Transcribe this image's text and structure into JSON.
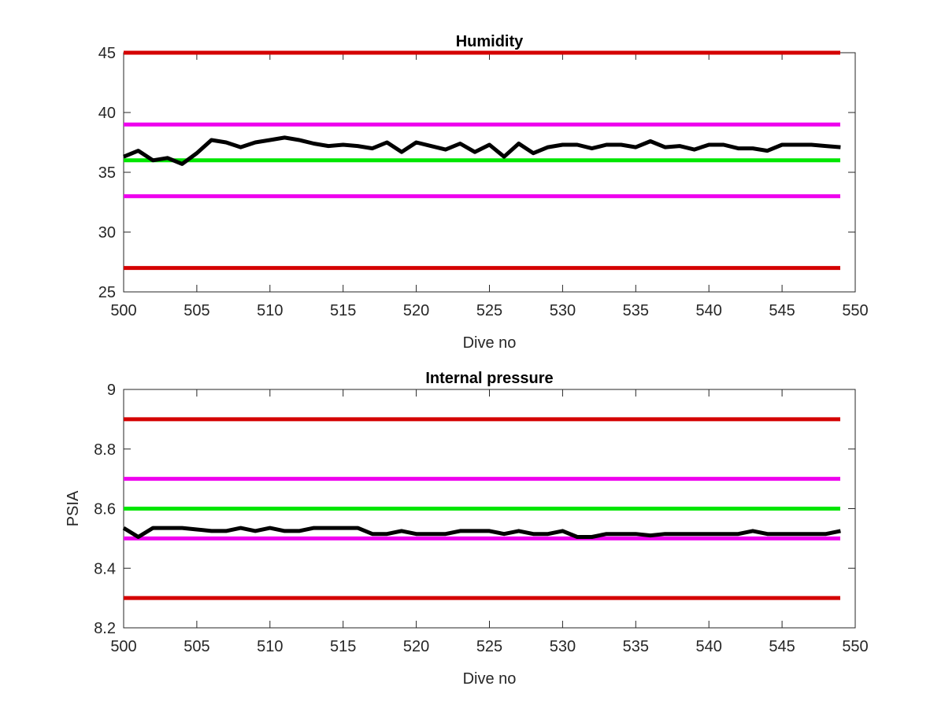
{
  "chart_data": [
    {
      "type": "line",
      "title": "Humidity",
      "xlabel": "Dive no",
      "ylabel": "",
      "xlim": [
        500,
        550
      ],
      "ylim": [
        25,
        45
      ],
      "xticks": [
        "500",
        "505",
        "510",
        "515",
        "520",
        "525",
        "530",
        "535",
        "540",
        "545",
        "550"
      ],
      "yticks": [
        "25",
        "30",
        "35",
        "40",
        "45"
      ],
      "grid": false,
      "reference_lines": [
        {
          "y": 45,
          "color": "#d40000"
        },
        {
          "y": 39,
          "color": "#ee00ee"
        },
        {
          "y": 36,
          "color": "#00e600"
        },
        {
          "y": 33,
          "color": "#ee00ee"
        },
        {
          "y": 27,
          "color": "#d40000"
        }
      ],
      "series": [
        {
          "color": "#000000",
          "x": [
            500,
            501,
            502,
            503,
            504,
            505,
            506,
            507,
            508,
            509,
            510,
            511,
            512,
            513,
            514,
            515,
            516,
            517,
            518,
            519,
            520,
            521,
            522,
            523,
            524,
            525,
            526,
            527,
            528,
            529,
            530,
            531,
            532,
            533,
            534,
            535,
            536,
            537,
            538,
            539,
            540,
            541,
            542,
            543,
            544,
            545,
            546,
            547,
            548,
            549
          ],
          "y": [
            36.3,
            36.8,
            36.0,
            36.2,
            35.7,
            36.6,
            37.7,
            37.5,
            37.1,
            37.5,
            37.7,
            37.9,
            37.7,
            37.4,
            37.2,
            37.3,
            37.2,
            37.0,
            37.5,
            36.7,
            37.5,
            37.2,
            36.9,
            37.4,
            36.7,
            37.3,
            36.3,
            37.4,
            36.6,
            37.1,
            37.3,
            37.3,
            37.0,
            37.3,
            37.3,
            37.1,
            37.6,
            37.1,
            37.2,
            36.9,
            37.3,
            37.3,
            37.0,
            37.0,
            36.8,
            37.3,
            37.3,
            37.3,
            37.2,
            37.1
          ]
        }
      ]
    },
    {
      "type": "line",
      "title": "Internal pressure",
      "xlabel": "Dive no",
      "ylabel": "PSIA",
      "xlim": [
        500,
        550
      ],
      "ylim": [
        8.2,
        9
      ],
      "xticks": [
        "500",
        "505",
        "510",
        "515",
        "520",
        "525",
        "530",
        "535",
        "540",
        "545",
        "550"
      ],
      "yticks": [
        "8.2",
        "8.4",
        "8.6",
        "8.8",
        "9"
      ],
      "grid": false,
      "reference_lines": [
        {
          "y": 8.9,
          "color": "#d40000"
        },
        {
          "y": 8.7,
          "color": "#ee00ee"
        },
        {
          "y": 8.6,
          "color": "#00e600"
        },
        {
          "y": 8.5,
          "color": "#ee00ee"
        },
        {
          "y": 8.3,
          "color": "#d40000"
        }
      ],
      "series": [
        {
          "color": "#000000",
          "x": [
            500,
            501,
            502,
            503,
            504,
            505,
            506,
            507,
            508,
            509,
            510,
            511,
            512,
            513,
            514,
            515,
            516,
            517,
            518,
            519,
            520,
            521,
            522,
            523,
            524,
            525,
            526,
            527,
            528,
            529,
            530,
            531,
            532,
            533,
            534,
            535,
            536,
            537,
            538,
            539,
            540,
            541,
            542,
            543,
            544,
            545,
            546,
            547,
            548,
            549
          ],
          "y": [
            8.535,
            8.505,
            8.535,
            8.535,
            8.535,
            8.53,
            8.525,
            8.525,
            8.535,
            8.525,
            8.535,
            8.525,
            8.525,
            8.535,
            8.535,
            8.535,
            8.535,
            8.515,
            8.515,
            8.525,
            8.515,
            8.515,
            8.515,
            8.525,
            8.525,
            8.525,
            8.515,
            8.525,
            8.515,
            8.515,
            8.525,
            8.505,
            8.505,
            8.515,
            8.515,
            8.515,
            8.51,
            8.515,
            8.515,
            8.515,
            8.515,
            8.515,
            8.515,
            8.525,
            8.515,
            8.515,
            8.515,
            8.515,
            8.515,
            8.525
          ]
        }
      ]
    }
  ]
}
